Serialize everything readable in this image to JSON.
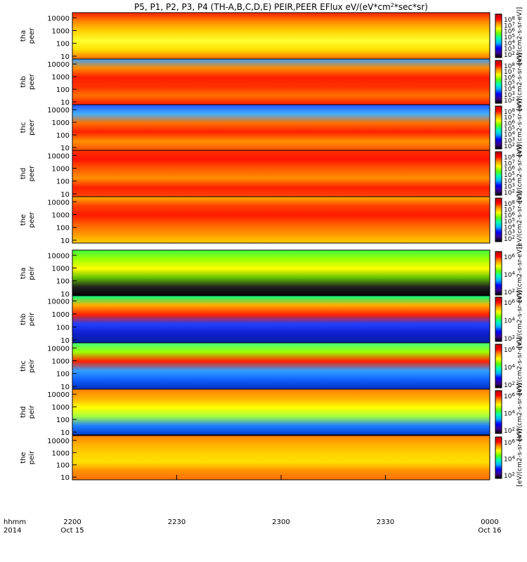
{
  "chart_data": {
    "type": "heatmap",
    "title": "P5, P1, P2, P3, P4 (TH-A,B,C,D,E) PEIR,PEER EFlux eV/(eV*cm",
    "title_sup": "2",
    "title_tail": "*sec*sr)",
    "x_axis": {
      "row_label_1": "hhmm",
      "row_label_2": "2014",
      "ticks": [
        {
          "time": "2200",
          "date": "Oct 15",
          "minutes": 0
        },
        {
          "time": "2230",
          "date": "",
          "minutes": 30
        },
        {
          "time": "2300",
          "date": "",
          "minutes": 60
        },
        {
          "time": "2330",
          "date": "",
          "minutes": 90
        },
        {
          "time": "0000",
          "date": "Oct 16",
          "minutes": 120
        }
      ],
      "range_minutes": [
        0,
        120
      ]
    },
    "y_axis": {
      "scale": "log",
      "tick_labels": [
        "10000",
        "1000",
        "100",
        "10"
      ],
      "range_eV": [
        6,
        25000
      ]
    },
    "colorbar": {
      "colors": [
        "#000000",
        "#3c0096",
        "#0000ff",
        "#00b4ff",
        "#00ffb4",
        "#64ff00",
        "#ffff00",
        "#ff9600",
        "#ff0000",
        "#b40000"
      ],
      "electron_tick_labels": [
        "10",
        "10",
        "10",
        "10",
        "10",
        "10",
        "10"
      ],
      "electron_tick_exps": [
        "8",
        "7",
        "6",
        "5",
        "4",
        "3",
        "2"
      ],
      "ion_tick_labels": [
        "10",
        "10",
        "10"
      ],
      "ion_tick_exps": [
        "6",
        "4",
        "2"
      ],
      "label": "[eV/(cm2-s-sr-eV)]"
    },
    "panels": [
      {
        "probe": "tha",
        "product": "peer"
      },
      {
        "probe": "thb",
        "product": "peer"
      },
      {
        "probe": "thc",
        "product": "peer"
      },
      {
        "probe": "thd",
        "product": "peer"
      },
      {
        "probe": "the",
        "product": "peer"
      },
      {
        "probe": "tha",
        "product": "peir"
      },
      {
        "probe": "thb",
        "product": "peir"
      },
      {
        "probe": "thc",
        "product": "peir"
      },
      {
        "probe": "thd",
        "product": "peir"
      },
      {
        "probe": "the",
        "product": "peir"
      }
    ]
  }
}
